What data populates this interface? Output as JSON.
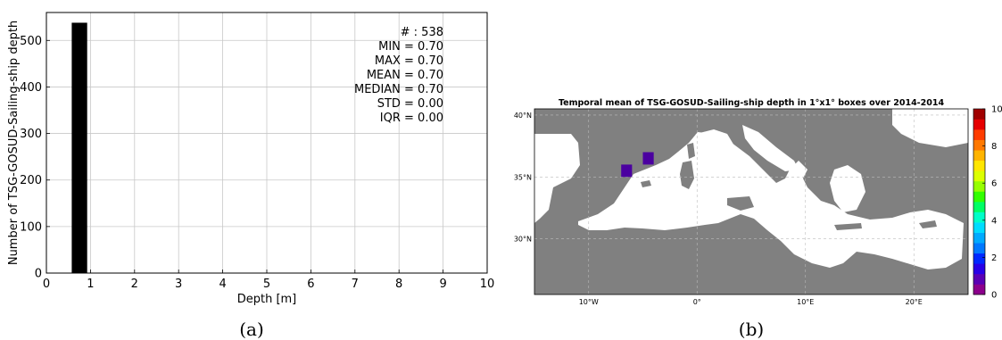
{
  "chart_data": [
    {
      "type": "bar",
      "x": [
        0.75
      ],
      "values": [
        538
      ],
      "bin_width": 0.35,
      "title": "",
      "xlabel": "Depth [m]",
      "ylabel": "Number of TSG-GOSUD-Sailing-ship depth",
      "xlim": [
        0,
        10
      ],
      "ylim": [
        0,
        560
      ],
      "xticks": [
        "0",
        "1",
        "2",
        "3",
        "4",
        "5",
        "6",
        "7",
        "8",
        "9",
        "10"
      ],
      "yticks": [
        "0",
        "100",
        "200",
        "300",
        "400",
        "500"
      ],
      "grid": true,
      "bar_color": "#000000",
      "stats": [
        "# : 538",
        "MIN = 0.70",
        "MAX =  0.70",
        "MEAN = 0.70",
        "MEDIAN = 0.70",
        "STD = 0.00",
        "IQR = 0.00"
      ]
    },
    {
      "type": "heatmap",
      "title": "Temporal mean of TSG-GOSUD-Sailing-ship depth in 1°x1° boxes over 2014-2014",
      "xlim": [
        -15,
        25
      ],
      "ylim": [
        25.5,
        40.5
      ],
      "xticks": [
        {
          "value": -10,
          "label": "10°W"
        },
        {
          "value": 0,
          "label": "0°"
        },
        {
          "value": 10,
          "label": "10°E"
        },
        {
          "value": 20,
          "label": "20°E"
        }
      ],
      "yticks": [
        {
          "value": 30,
          "label": "30°N"
        },
        {
          "value": 35,
          "label": "35°N"
        },
        {
          "value": 40,
          "label": "40°N"
        }
      ],
      "cells": [
        {
          "lon": -6.5,
          "lat": 35.5,
          "value": 0.7
        },
        {
          "lon": -4.5,
          "lat": 36.5,
          "value": 0.7
        }
      ],
      "cell_color": "#4b00a0",
      "land_color": "#808080",
      "sea_color": "#ffffff",
      "colorbar": {
        "min": 0,
        "max": 10,
        "ticks": [
          "0",
          "2",
          "4",
          "6",
          "8",
          "10"
        ],
        "colors": [
          "#8c008c",
          "#5a00b4",
          "#2800e6",
          "#0028ff",
          "#0078ff",
          "#00aaff",
          "#00dcff",
          "#00ffc8",
          "#00ff64",
          "#32ff00",
          "#96ff00",
          "#dcff00",
          "#ffe600",
          "#ffb400",
          "#ff7800",
          "#ff3c00",
          "#e60000",
          "#a00000"
        ]
      }
    }
  ],
  "captions": [
    "(a)",
    "(b)"
  ]
}
